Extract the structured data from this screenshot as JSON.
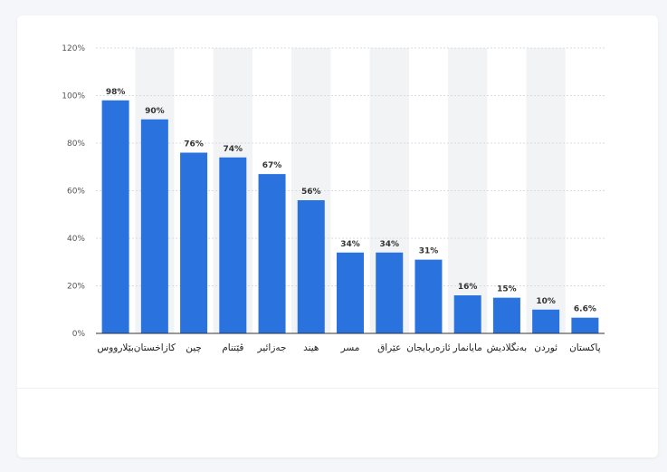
{
  "chart_data": {
    "type": "bar",
    "categories": [
      "بێلارووس",
      "کازاخستان",
      "چین",
      "ڤێتنام",
      "جەزائیر",
      "هیند",
      "مسر",
      "عێراق",
      "ئازەربایجان",
      "مایانمار",
      "بەنگلادیش",
      "ئوردن",
      "پاکستان"
    ],
    "values": [
      98,
      90,
      76,
      74,
      67,
      56,
      34,
      34,
      31,
      16,
      15,
      10,
      6.6
    ],
    "value_labels": [
      "98%",
      "90%",
      "76%",
      "74%",
      "67%",
      "56%",
      "34%",
      "34%",
      "31%",
      "16%",
      "15%",
      "10%",
      "6.6%"
    ],
    "title": "",
    "xlabel": "",
    "ylabel": "",
    "ylim": [
      0,
      120
    ],
    "yticks": [
      0,
      20,
      40,
      60,
      80,
      100,
      120
    ],
    "ytick_labels": [
      "0%",
      "20%",
      "40%",
      "60%",
      "80%",
      "100%",
      "120%"
    ],
    "grid": true,
    "colors": {
      "bar": "#2a72de",
      "band": "#f2f3f5",
      "grid": "#d8dbe0"
    }
  }
}
